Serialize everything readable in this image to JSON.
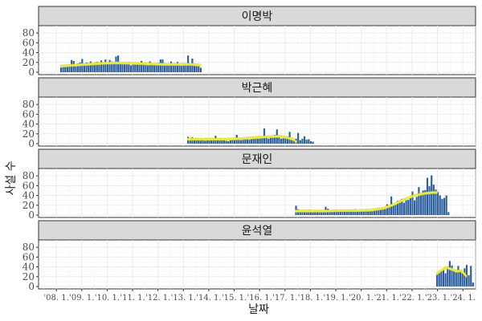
{
  "chart_data": {
    "type": "bar",
    "xlabel": "날짜",
    "ylabel": "사설 수",
    "ylim": [
      0,
      90
    ],
    "yticks": [
      0,
      20,
      40,
      60,
      80
    ],
    "xlim": [
      2007.3,
      2024.5
    ],
    "xticks": [
      {
        "value": 2008,
        "label": "'08. 1."
      },
      {
        "value": 2009,
        "label": "'09. 1."
      },
      {
        "value": 2010,
        "label": "'10. 1."
      },
      {
        "value": 2011,
        "label": "'11. 1."
      },
      {
        "value": 2012,
        "label": "'12. 1."
      },
      {
        "value": 2013,
        "label": "'13. 1."
      },
      {
        "value": 2014,
        "label": "'14. 1."
      },
      {
        "value": 2015,
        "label": "'15. 1."
      },
      {
        "value": 2016,
        "label": "'16. 1."
      },
      {
        "value": 2017,
        "label": "'17. 1."
      },
      {
        "value": 2018,
        "label": "'18. 1."
      },
      {
        "value": 2019,
        "label": "'19. 1."
      },
      {
        "value": 2020,
        "label": "'20. 1."
      },
      {
        "value": 2021,
        "label": "'21. 1."
      },
      {
        "value": 2022,
        "label": "'22. 1."
      },
      {
        "value": 2023,
        "label": "'23. 1."
      },
      {
        "value": 2024,
        "label": "'24. 1."
      }
    ],
    "colors": {
      "bar": "#2c5f9e",
      "smooth": "#f2f20a",
      "band": "#bdbdbd"
    },
    "panels": [
      {
        "title": "이명박",
        "start": 2008.15,
        "values": [
          10,
          12,
          11,
          14,
          13,
          25,
          23,
          12,
          18,
          20,
          27,
          15,
          20,
          19,
          22,
          18,
          20,
          21,
          17,
          24,
          20,
          26,
          17,
          25,
          22,
          20,
          32,
          34,
          20,
          18,
          19,
          17,
          21,
          14,
          16,
          19,
          18,
          20,
          23,
          17,
          15,
          14,
          22,
          17,
          16,
          18,
          19,
          26,
          26,
          15,
          18,
          17,
          22,
          15,
          14,
          21,
          16,
          13,
          15,
          18,
          34,
          14,
          28,
          17,
          13,
          16,
          9
        ],
        "smooth": [
          [
            2008.15,
            12
          ],
          [
            2008.6,
            14
          ],
          [
            2009.2,
            16
          ],
          [
            2009.8,
            18
          ],
          [
            2010.4,
            19
          ],
          [
            2011.0,
            18
          ],
          [
            2011.6,
            17
          ],
          [
            2012.2,
            16
          ],
          [
            2012.8,
            16
          ],
          [
            2013.3,
            16
          ],
          [
            2013.7,
            14
          ]
        ]
      },
      {
        "title": "박근혜",
        "start": 2013.15,
        "values": [
          14,
          7,
          13,
          8,
          11,
          7,
          8,
          9,
          6,
          9,
          7,
          8,
          10,
          16,
          9,
          7,
          8,
          8,
          6,
          5,
          7,
          8,
          9,
          18,
          8,
          7,
          12,
          10,
          9,
          8,
          12,
          10,
          11,
          13,
          14,
          12,
          31,
          14,
          10,
          15,
          12,
          18,
          29,
          16,
          10,
          11,
          13,
          15,
          24,
          12,
          9,
          10,
          22,
          7,
          10,
          15,
          8,
          9,
          5,
          4
        ],
        "smooth": [
          [
            2013.15,
            9
          ],
          [
            2013.8,
            9
          ],
          [
            2014.5,
            9
          ],
          [
            2015.2,
            10
          ],
          [
            2015.8,
            12
          ],
          [
            2016.3,
            14
          ],
          [
            2016.8,
            15
          ],
          [
            2017.1,
            12
          ],
          [
            2017.35,
            8
          ],
          [
            2017.45,
            3
          ]
        ]
      },
      {
        "title": "문재인",
        "start": 2017.4,
        "values": [
          19,
          12,
          9,
          8,
          9,
          10,
          11,
          8,
          7,
          8,
          9,
          10,
          9,
          8,
          17,
          13,
          10,
          9,
          8,
          11,
          9,
          10,
          8,
          9,
          10,
          11,
          9,
          10,
          12,
          9,
          8,
          10,
          11,
          12,
          9,
          10,
          11,
          13,
          10,
          12,
          14,
          12,
          15,
          22,
          19,
          38,
          20,
          24,
          29,
          28,
          33,
          25,
          30,
          31,
          37,
          48,
          30,
          37,
          57,
          44,
          50,
          51,
          76,
          59,
          81,
          62,
          52,
          47,
          40,
          33,
          35,
          40,
          6
        ],
        "smooth": [
          [
            2017.4,
            8
          ],
          [
            2018.0,
            8
          ],
          [
            2018.6,
            8
          ],
          [
            2019.2,
            9
          ],
          [
            2019.8,
            9
          ],
          [
            2020.4,
            10
          ],
          [
            2020.9,
            14
          ],
          [
            2021.3,
            22
          ],
          [
            2021.7,
            32
          ],
          [
            2022.1,
            40
          ],
          [
            2022.5,
            44
          ],
          [
            2022.8,
            46
          ],
          [
            2023.0,
            46
          ]
        ]
      },
      {
        "title": "윤석열",
        "start": 2022.95,
        "values": [
          26,
          30,
          34,
          37,
          27,
          41,
          52,
          43,
          35,
          29,
          42,
          30,
          27,
          37,
          44,
          23,
          42,
          8
        ],
        "smooth": [
          [
            2022.95,
            25
          ],
          [
            2023.15,
            33
          ],
          [
            2023.35,
            39
          ],
          [
            2023.55,
            35
          ],
          [
            2023.75,
            31
          ],
          [
            2023.95,
            32
          ],
          [
            2024.15,
            20
          ]
        ]
      }
    ]
  }
}
